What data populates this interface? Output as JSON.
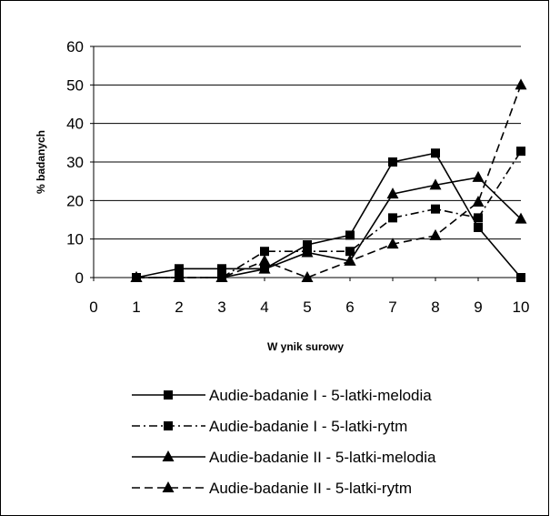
{
  "chart_data": {
    "type": "line",
    "title": "",
    "xlabel": "W ynik surowy",
    "ylabel": "% badanych",
    "xlim": [
      0,
      10
    ],
    "ylim": [
      0,
      60
    ],
    "x_ticks": [
      "0",
      "1",
      "2",
      "3",
      "4",
      "5",
      "6",
      "7",
      "8",
      "9",
      "10"
    ],
    "y_ticks": [
      "0",
      "10",
      "20",
      "30",
      "40",
      "50",
      "60"
    ],
    "grid": "horizontal",
    "legend_position": "bottom",
    "x": [
      1,
      2,
      3,
      4,
      5,
      6,
      7,
      8,
      9,
      10
    ],
    "series": [
      {
        "name": "Audie-badanie I - 5-latki-melodia",
        "marker": "square",
        "dash": "solid",
        "values": [
          0,
          2.3,
          2.3,
          2.3,
          8.5,
          11,
          30,
          32.3,
          13,
          0
        ]
      },
      {
        "name": "Audie-badanie I - 5-latki-rytm",
        "marker": "square",
        "dash": "dashdot",
        "values": [
          0,
          0,
          0,
          6.8,
          6.8,
          6.8,
          15.5,
          17.8,
          15.5,
          32.8
        ]
      },
      {
        "name": "Audie-badanie II - 5-latki-melodia",
        "marker": "triangle",
        "dash": "solid",
        "values": [
          0,
          0,
          0,
          2.2,
          6.5,
          4.3,
          21.7,
          24,
          26,
          15.2
        ]
      },
      {
        "name": "Audie-badanie II - 5-latki-rytm",
        "marker": "triangle",
        "dash": "dash",
        "values": [
          0,
          0,
          0,
          4.3,
          0,
          4.3,
          8.7,
          10.9,
          19.6,
          50
        ]
      }
    ]
  }
}
